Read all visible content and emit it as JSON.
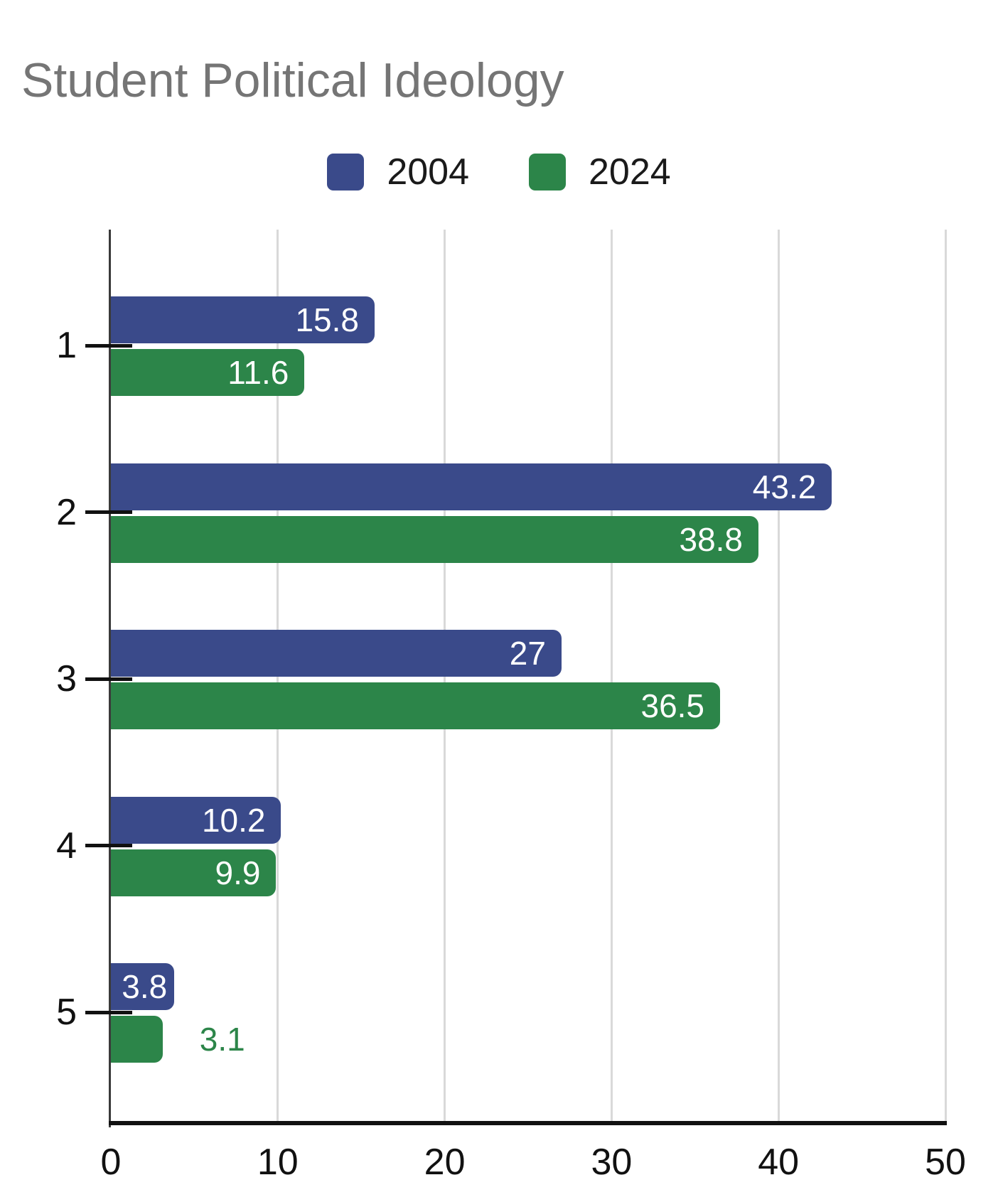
{
  "title": {
    "text": "Student Political Ideology",
    "color": "#757575"
  },
  "legend": {
    "items": [
      {
        "label": "2004",
        "color": "#3a4a8a"
      },
      {
        "label": "2024",
        "color": "#2c8549"
      }
    ]
  },
  "chart_data": {
    "type": "bar",
    "orientation": "horizontal",
    "title": "Student Political Ideology",
    "categories": [
      "1",
      "2",
      "3",
      "4",
      "5"
    ],
    "series": [
      {
        "name": "2004",
        "color": "#3a4a8a",
        "values": [
          15.8,
          43.2,
          27,
          10.2,
          3.8
        ],
        "labels": [
          "15.8",
          "43.2",
          "27",
          "10.2",
          "3.8"
        ]
      },
      {
        "name": "2024",
        "color": "#2c8549",
        "values": [
          11.6,
          38.8,
          36.5,
          9.9,
          3.1
        ],
        "labels": [
          "11.6",
          "38.8",
          "36.5",
          "9.9",
          "3.1"
        ]
      }
    ],
    "xlim": [
      0,
      50
    ],
    "x_ticks": [
      "0",
      "10",
      "20",
      "30",
      "40",
      "50"
    ],
    "x_tick_values": [
      0,
      10,
      20,
      30,
      40,
      50
    ],
    "grid": "vertical",
    "legend_position": "top-center",
    "value_label_color_inside": "#ffffff",
    "axis_color": "#111111",
    "gridline_color": "#d9d9d9",
    "title_color": "#757575"
  }
}
